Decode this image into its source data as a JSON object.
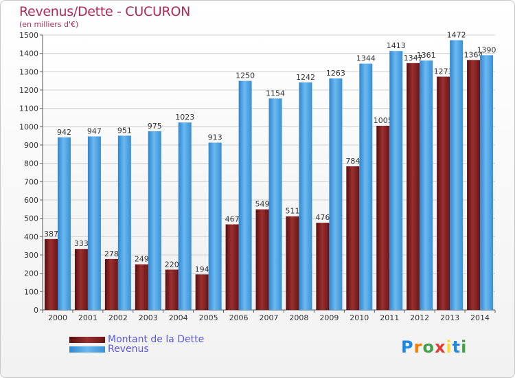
{
  "header": {
    "title": "Revenus/Dette - CUCURON",
    "subtitle": "(en milliers d'€)"
  },
  "chart_data": {
    "type": "bar",
    "categories": [
      "2000",
      "2001",
      "2002",
      "2003",
      "2004",
      "2005",
      "2006",
      "2007",
      "2008",
      "2009",
      "2010",
      "2011",
      "2012",
      "2013",
      "2014"
    ],
    "series": [
      {
        "name": "Montant de la Dette",
        "color": "#7a1c1c",
        "values": [
          387,
          333,
          278,
          249,
          220,
          194,
          467,
          549,
          511,
          476,
          784,
          1005,
          1347,
          1273,
          1364
        ],
        "labels": [
          "387",
          "333",
          "278",
          "249",
          "220",
          "194",
          "467",
          "549",
          "511",
          "476",
          "784",
          "1005",
          "1347",
          "1273",
          "1364"
        ]
      },
      {
        "name": "Revenus",
        "color": "#4da3e4",
        "values": [
          942,
          947,
          951,
          975,
          1023,
          913,
          1250,
          1154,
          1242,
          1263,
          1344,
          1413,
          1361,
          1472,
          1390
        ],
        "labels": [
          "942",
          "947",
          "951",
          "975",
          "1023",
          "913",
          "1250",
          "1154",
          "1242",
          "1263",
          "1344",
          "1413",
          "1361",
          "1472",
          "1390"
        ]
      }
    ],
    "ylim": [
      0,
      1500
    ],
    "yticks": [
      "0",
      "100",
      "200",
      "300",
      "400",
      "500",
      "600",
      "700",
      "800",
      "900",
      "1000",
      "1100",
      "1200",
      "1300",
      "1400",
      "1500"
    ],
    "grid": true,
    "legend_position": "bottom-left"
  },
  "logo": {
    "letters": [
      "P",
      "r",
      "o",
      "x",
      "i",
      "t",
      "i"
    ],
    "colors": [
      "#1e88e5",
      "#f57c00",
      "#43a047",
      "#e53935",
      "#fdd835",
      "#1e88e5",
      "#43a047"
    ]
  }
}
